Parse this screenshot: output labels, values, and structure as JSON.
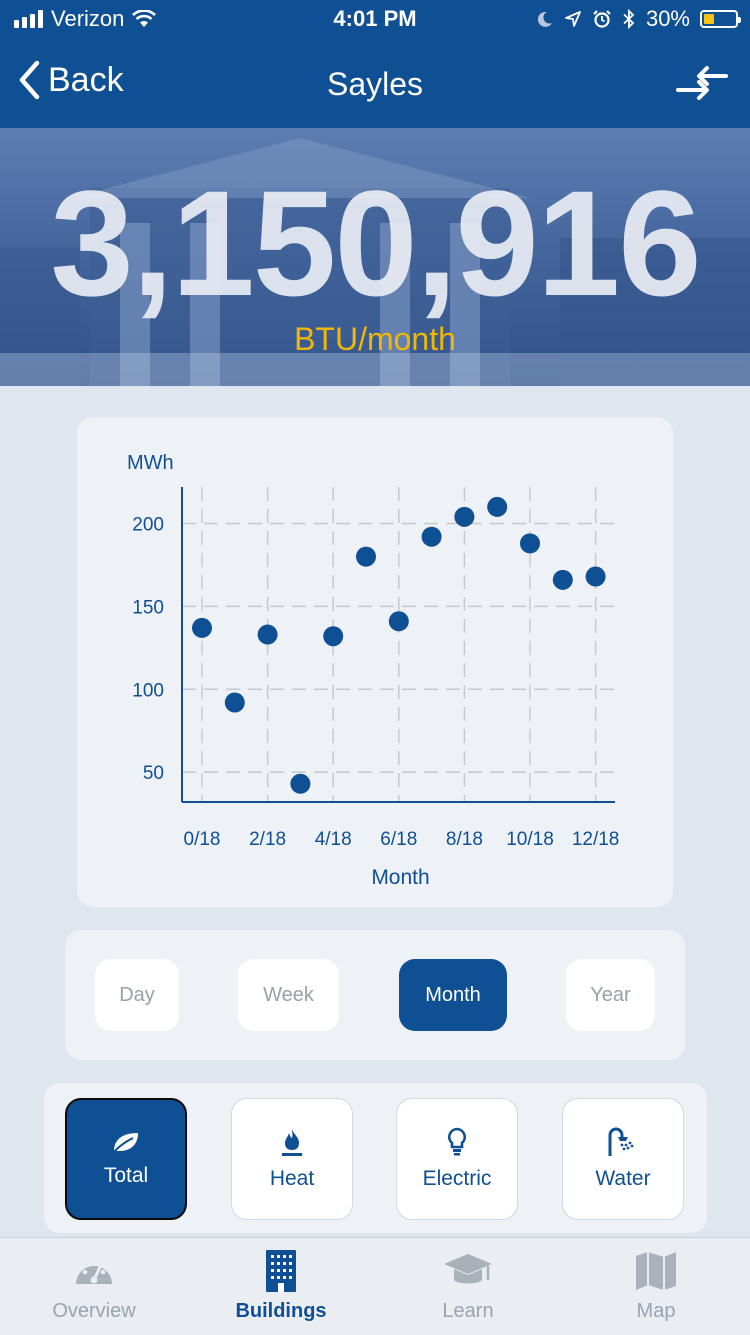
{
  "status_bar": {
    "carrier": "Verizon",
    "time": "4:01 PM",
    "battery": "30%",
    "battery_color": "#f6c515"
  },
  "nav": {
    "back_label": "Back",
    "title": "Sayles"
  },
  "hero": {
    "value": "3,150,916",
    "unit": "BTU/month",
    "unit_color": "#f2b705"
  },
  "chart_data": {
    "type": "scatter",
    "title": "",
    "xlabel": "Month",
    "ylabel": "MWh",
    "x_ticks": [
      "0/18",
      "2/18",
      "4/18",
      "6/18",
      "8/18",
      "10/18",
      "12/18"
    ],
    "y_ticks": [
      50,
      100,
      150,
      200
    ],
    "xlim": [
      0,
      12
    ],
    "ylim": [
      32,
      222
    ],
    "x": [
      0,
      1,
      2,
      3,
      4,
      5,
      6,
      7,
      8,
      9,
      10,
      11,
      12
    ],
    "values": [
      137,
      92,
      133,
      43,
      132,
      180,
      141,
      192,
      204,
      210,
      188,
      166,
      168
    ],
    "color": "#0f4f93"
  },
  "periods": {
    "items": [
      "Day",
      "Week",
      "Month",
      "Year"
    ],
    "selected": "Month"
  },
  "types": {
    "items": [
      "Total",
      "Heat",
      "Electric",
      "Water"
    ],
    "selected": "Total"
  },
  "tabs": {
    "items": [
      "Overview",
      "Buildings",
      "Learn",
      "Map"
    ],
    "selected": "Buildings"
  }
}
